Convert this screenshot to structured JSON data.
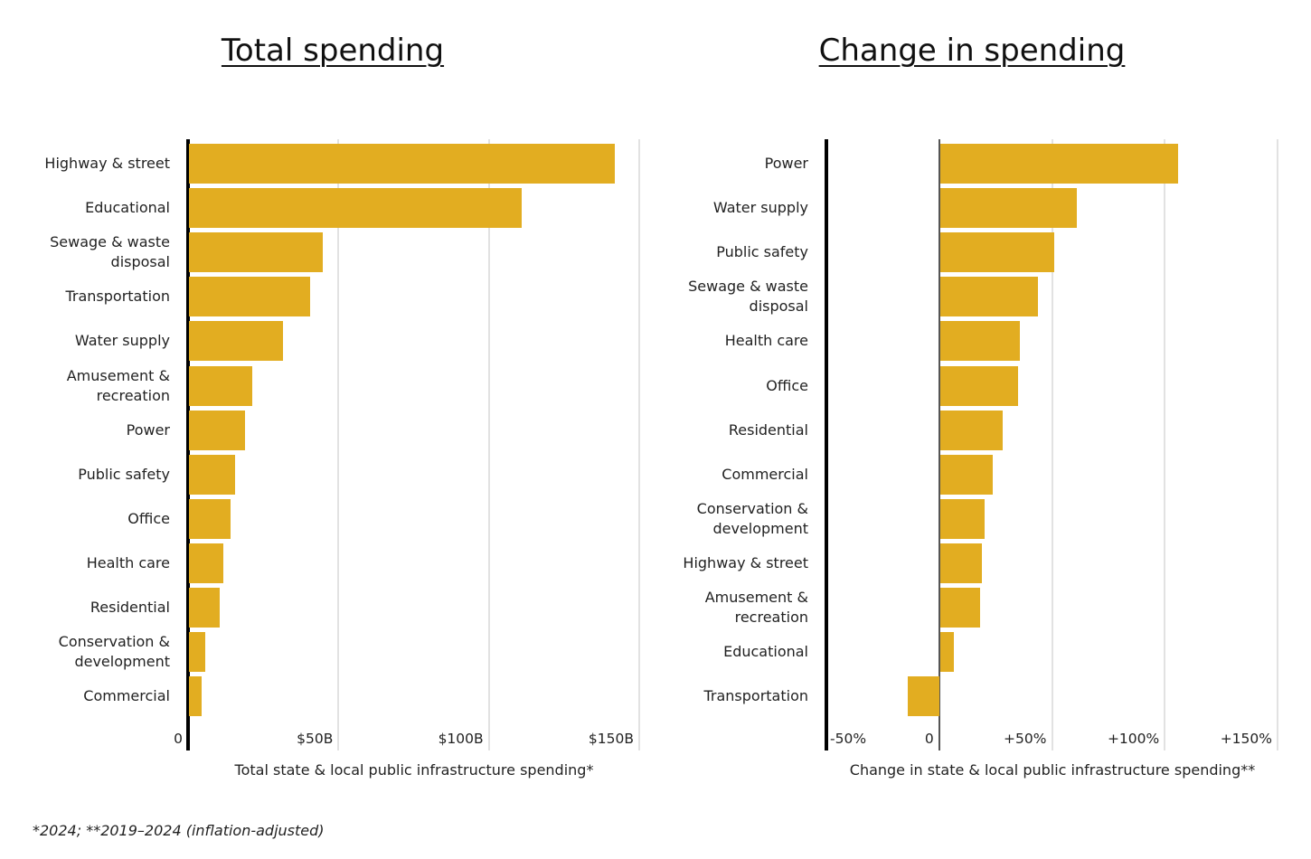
{
  "chart_data": [
    {
      "type": "bar",
      "orientation": "horizontal",
      "title": "Total spending",
      "xlabel": "Total state & local public infrastructure spending*",
      "categories": [
        "Highway & street",
        "Educational",
        "Sewage & waste disposal",
        "Transportation",
        "Water supply",
        "Amusement & recreation",
        "Power",
        "Public safety",
        "Office",
        "Health care",
        "Residential",
        "Conservation & development",
        "Commercial"
      ],
      "values": [
        141.5,
        110.5,
        44.4,
        40.2,
        31.2,
        21.0,
        18.6,
        15.3,
        13.8,
        11.4,
        10.2,
        5.4,
        4.2
      ],
      "unit": "billion USD",
      "xlim": [
        0,
        150
      ],
      "ticks": [
        0,
        50,
        100,
        150
      ],
      "tick_labels": [
        "0",
        "$50B",
        "$100B",
        "$150B"
      ],
      "grid": true,
      "color": "#e2ad21"
    },
    {
      "type": "bar",
      "orientation": "horizontal",
      "title": "Change in spending",
      "xlabel": "Change in state & local public infrastructure spending**",
      "categories": [
        "Power",
        "Water supply",
        "Public safety",
        "Sewage & waste disposal",
        "Health care",
        "Office",
        "Residential",
        "Commercial",
        "Conservation & development",
        "Highway & street",
        "Amusement & recreation",
        "Educational",
        "Transportation"
      ],
      "values": [
        105.6,
        60.8,
        50.8,
        43.2,
        35.2,
        34.4,
        27.6,
        23.2,
        19.6,
        18.4,
        17.6,
        6.0,
        -14.0
      ],
      "unit": "percent",
      "xlim": [
        -50,
        150
      ],
      "ticks": [
        -50,
        0,
        50,
        100,
        150
      ],
      "tick_labels": [
        "-50%",
        "0",
        "+50%",
        "+100%",
        "+150%"
      ],
      "grid": true,
      "color": "#e2ad21"
    }
  ],
  "footnote": "*2024;  **2019–2024 (inflation-adjusted)"
}
